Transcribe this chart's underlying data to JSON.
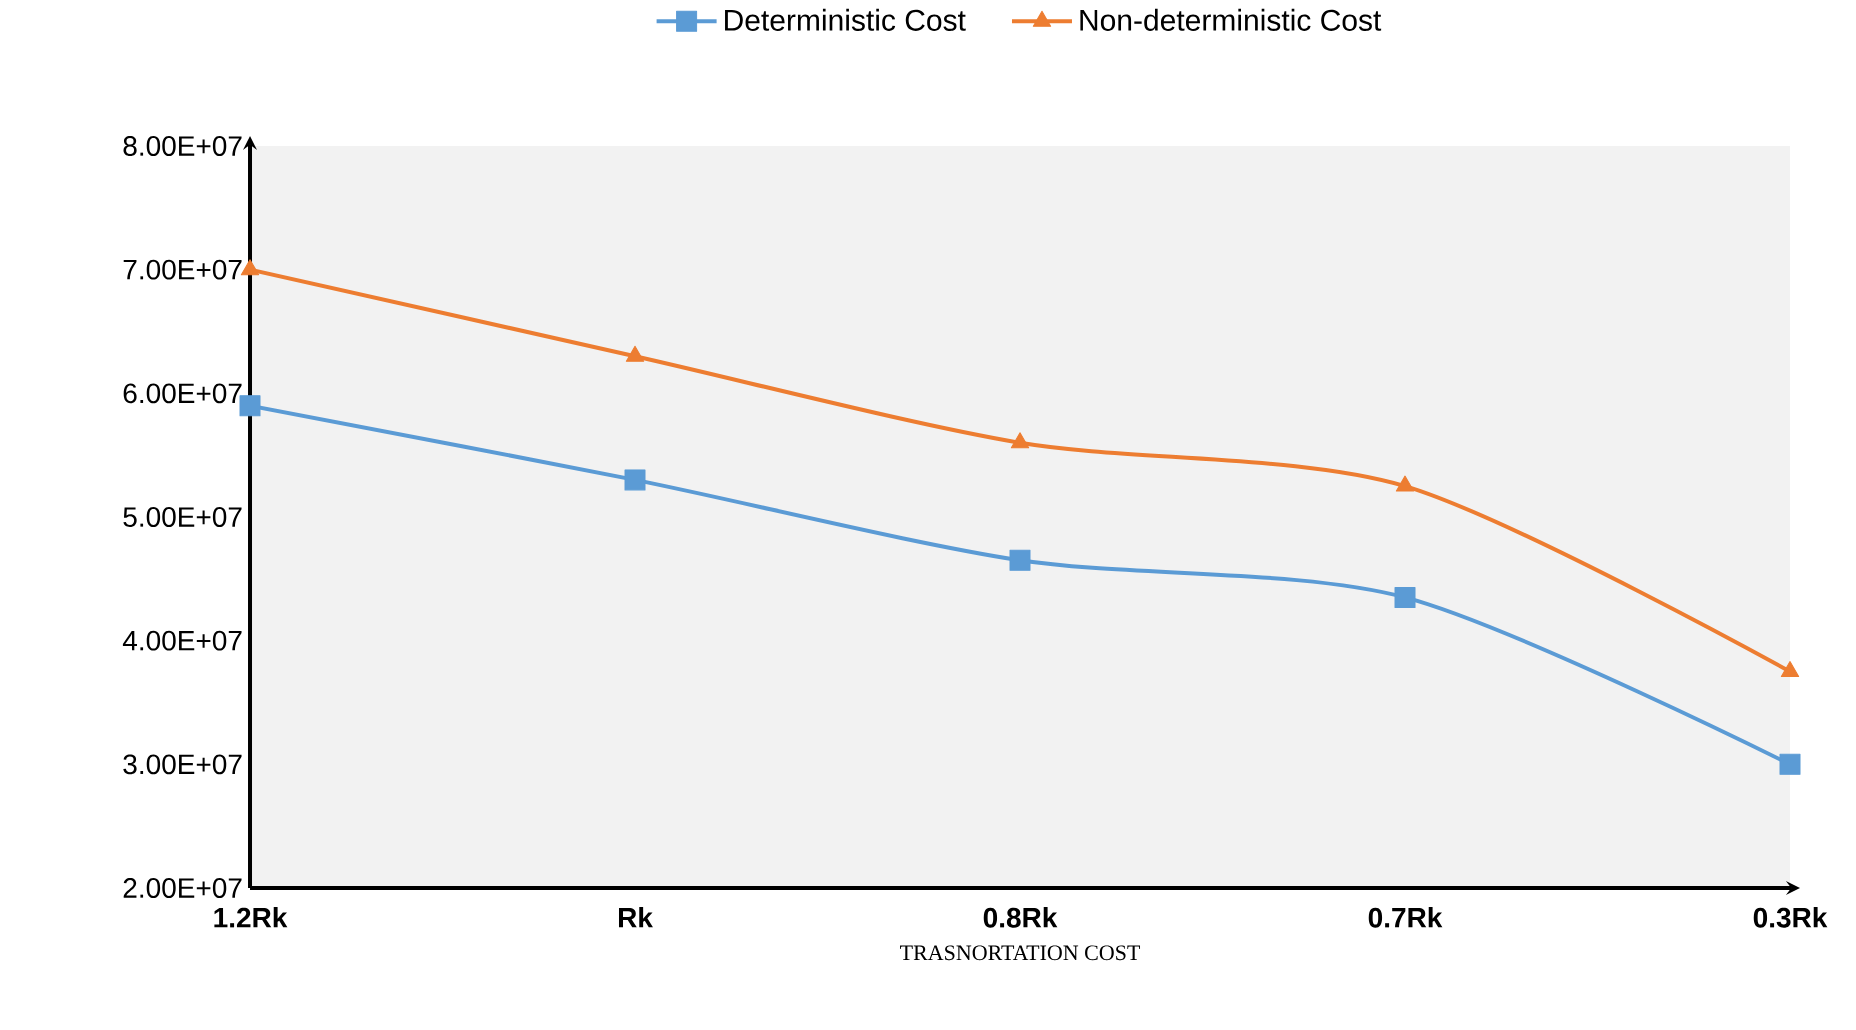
{
  "chart_data": {
    "type": "line",
    "xlabel": "TRASNORTATION COST",
    "categories": [
      "1.2Rk",
      "Rk",
      "0.8Rk",
      "0.7Rk",
      "0.3Rk"
    ],
    "series": [
      {
        "name": "Deterministic Cost",
        "color": "#5b9bd5",
        "marker": "square",
        "values": [
          59000000,
          53000000,
          46500000,
          43500000,
          30000000
        ]
      },
      {
        "name": "Non-deterministic Cost",
        "color": "#ed7d31",
        "marker": "triangle",
        "values": [
          70000000,
          63000000,
          56000000,
          52500000,
          37500000
        ]
      }
    ],
    "ylim": [
      20000000,
      80000000
    ],
    "yticks": [
      {
        "value": 20000000,
        "label": "2.00E+07"
      },
      {
        "value": 30000000,
        "label": "3.00E+07"
      },
      {
        "value": 40000000,
        "label": "4.00E+07"
      },
      {
        "value": 50000000,
        "label": "5.00E+07"
      },
      {
        "value": 60000000,
        "label": "6.00E+07"
      },
      {
        "value": 70000000,
        "label": "7.00E+07"
      },
      {
        "value": 80000000,
        "label": "8.00E+07"
      }
    ],
    "legend": "top"
  }
}
